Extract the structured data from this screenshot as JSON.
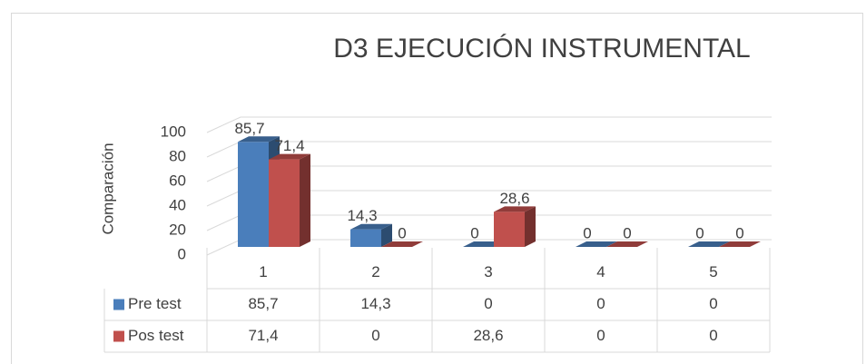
{
  "chart_data": {
    "type": "bar3d",
    "title": "D3 EJECUCIÓN INSTRUMENTAL",
    "y_label": "Comparación",
    "categories": [
      "1",
      "2",
      "3",
      "4",
      "5"
    ],
    "series": [
      {
        "name": "Pre test",
        "color": "#4a7ebb",
        "values": [
          85.7,
          14.3,
          0,
          0,
          0
        ],
        "value_labels": [
          "85,7",
          "14,3",
          "0",
          "0",
          "0"
        ]
      },
      {
        "name": "Pos test",
        "color": "#c0504d",
        "values": [
          71.4,
          0,
          28.6,
          0,
          0
        ],
        "value_labels": [
          "71,4",
          "0",
          "28,6",
          "0",
          "0"
        ]
      }
    ],
    "ylim": [
      0,
      100
    ],
    "yticks": [
      0,
      20,
      40,
      60,
      80,
      100
    ],
    "grid": true,
    "data_table": true
  }
}
